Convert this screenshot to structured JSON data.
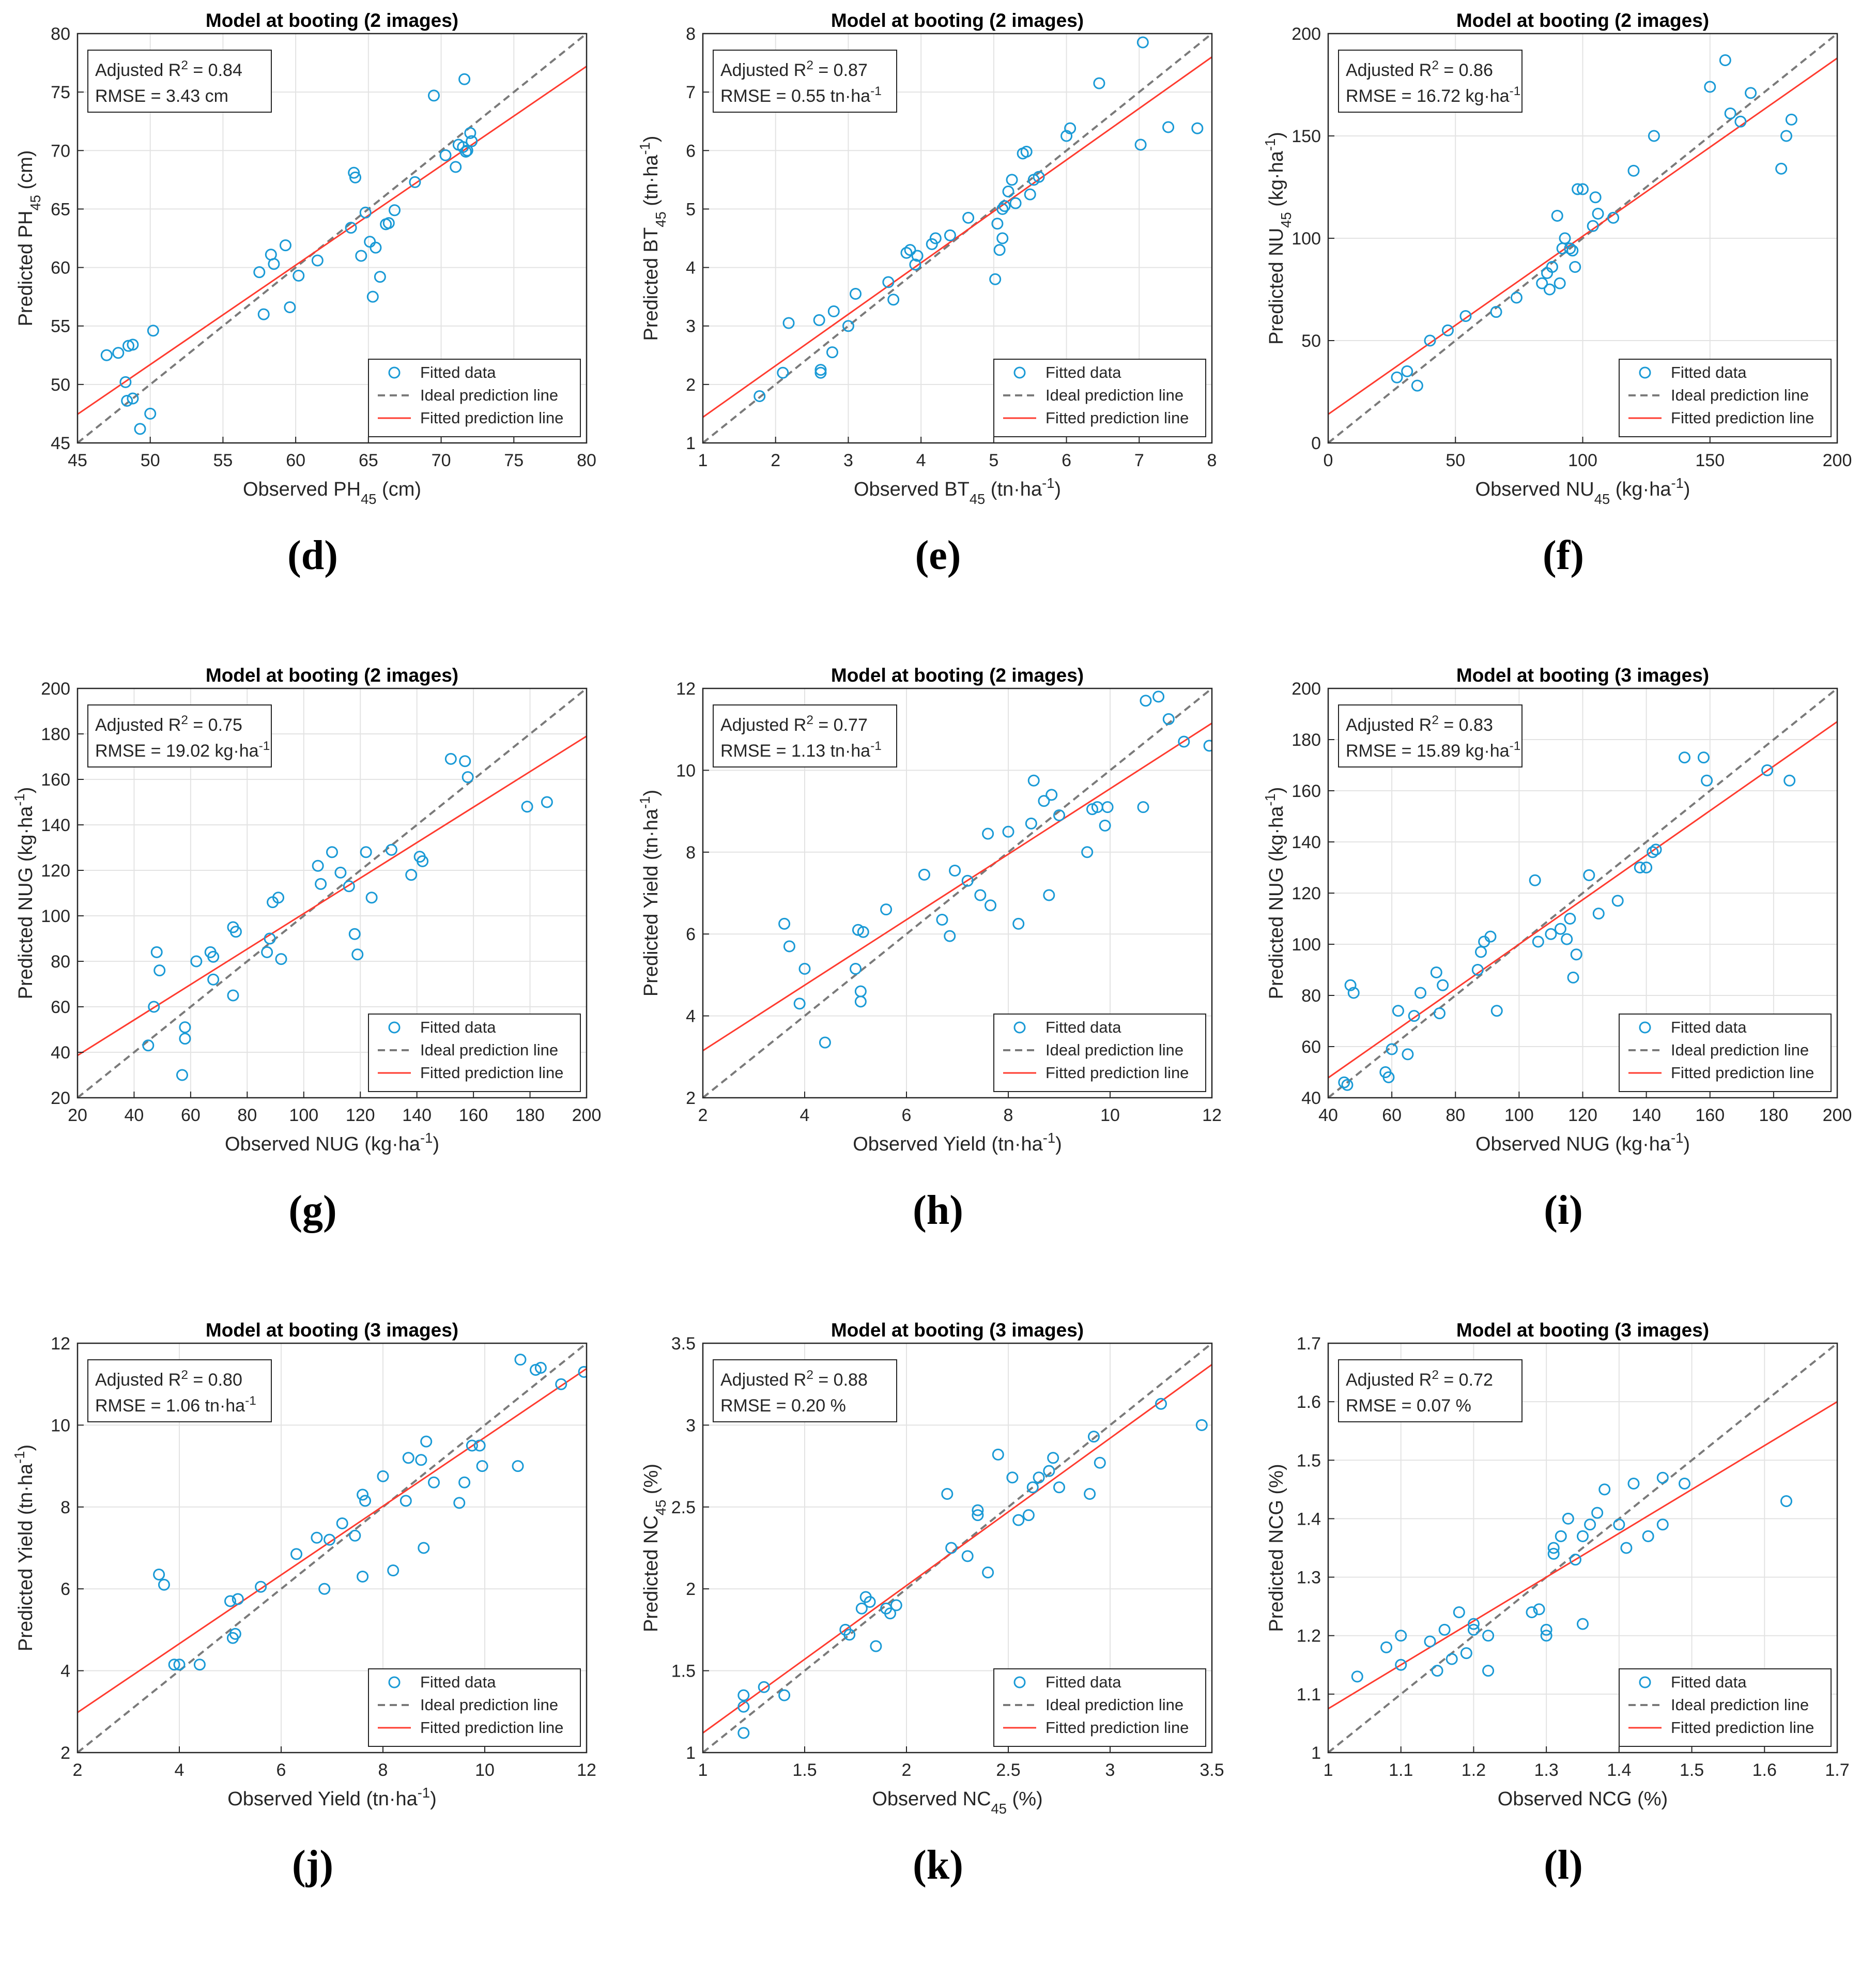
{
  "chart_data": [
    {
      "id": "d",
      "type": "scatter",
      "panel_label": "(d)",
      "title": "Model at booting (2 images)",
      "xlabel": "Observed PH",
      "xlabel_sub": "45",
      "xlabel_after": " (cm)",
      "ylabel": "Predicted PH",
      "ylabel_sub": "45",
      "ylabel_after": " (cm)",
      "xlim": [
        45,
        80
      ],
      "ylim": [
        45,
        80
      ],
      "xticks": [
        45,
        50,
        55,
        60,
        65,
        70,
        75,
        80
      ],
      "yticks": [
        45,
        50,
        55,
        60,
        65,
        70,
        75,
        80
      ],
      "stats": {
        "r2_label": "Adjusted R",
        "r2_sup": "2",
        "r2_value": " = 0.84",
        "rmse_label": "RMSE = 3.43 cm",
        "rmse_sup": "",
        "rmse_after": ""
      },
      "legend": [
        "Fitted data",
        "Ideal prediction line",
        "Fitted prediction line"
      ],
      "fit": [
        0.85,
        9.2
      ],
      "x": [
        47,
        47.8,
        48.5,
        48.8,
        48.3,
        48.4,
        48.8,
        49.3,
        50,
        50.2,
        57.5,
        57.8,
        58.3,
        58.5,
        59.3,
        59.6,
        60.2,
        61.5,
        63.8,
        64,
        64.1,
        64.5,
        64.8,
        65.1,
        65.3,
        65.5,
        65.8,
        66.2,
        66.4,
        66.8,
        68.2,
        69.5,
        70.3,
        71,
        71.2,
        71.5,
        71.7,
        71.8,
        72,
        72.1,
        71.6
      ],
      "y": [
        52.5,
        52.7,
        53.3,
        53.4,
        50.2,
        48.6,
        48.8,
        46.2,
        47.5,
        54.6,
        59.6,
        56,
        61.1,
        60.3,
        61.9,
        56.6,
        59.3,
        60.6,
        63.4,
        68.1,
        67.7,
        61,
        64.7,
        62.2,
        57.5,
        61.7,
        59.2,
        63.7,
        63.8,
        64.9,
        67.3,
        74.7,
        69.6,
        68.6,
        70.5,
        70.3,
        69.9,
        70,
        71.5,
        70.8,
        76.1
      ]
    },
    {
      "id": "e",
      "type": "scatter",
      "panel_label": "(e)",
      "title": "Model at booting (2 images)",
      "xlabel": "Observed BT",
      "xlabel_sub": "45",
      "xlabel_after": " (tn·ha",
      "xlabel_sup": "-1",
      "xlabel_end": ")",
      "ylabel": "Predicted BT",
      "ylabel_sub": "45",
      "ylabel_after": " (tn·ha",
      "ylabel_sup": "-1",
      "ylabel_end": ")",
      "xlim": [
        1,
        8
      ],
      "ylim": [
        1,
        8
      ],
      "xticks": [
        1,
        2,
        3,
        4,
        5,
        6,
        7,
        8
      ],
      "yticks": [
        1,
        2,
        3,
        4,
        5,
        6,
        7,
        8
      ],
      "stats": {
        "r2_label": "Adjusted R",
        "r2_sup": "2",
        "r2_value": " = 0.87",
        "rmse_label": "RMSE = 0.55 tn·ha",
        "rmse_sup": "-1",
        "rmse_after": ""
      },
      "legend": [
        "Fitted data",
        "Ideal prediction line",
        "Fitted prediction line"
      ],
      "fit": [
        0.88,
        0.56
      ],
      "x": [
        1.78,
        2.1,
        2.18,
        2.6,
        2.62,
        2.62,
        2.78,
        2.8,
        3,
        3.1,
        3.55,
        3.62,
        3.8,
        3.85,
        3.92,
        3.95,
        4.15,
        4.2,
        4.4,
        4.65,
        5.02,
        5.05,
        5.08,
        5.12,
        5.12,
        5.15,
        5.2,
        5.25,
        5.3,
        5.4,
        5.45,
        5.5,
        5.55,
        5.62,
        6,
        6.05,
        6.45,
        7.02,
        7.05,
        7.4,
        7.8
      ],
      "y": [
        1.8,
        2.2,
        3.05,
        3.1,
        2.25,
        2.2,
        2.55,
        3.25,
        3,
        3.55,
        3.75,
        3.45,
        4.25,
        4.3,
        4.05,
        4.2,
        4.4,
        4.5,
        4.55,
        4.85,
        3.8,
        4.75,
        4.3,
        5,
        4.5,
        5.05,
        5.3,
        5.5,
        5.1,
        5.95,
        5.98,
        5.25,
        5.5,
        5.55,
        6.25,
        6.38,
        7.15,
        6.1,
        7.85,
        6.4,
        6.38
      ]
    },
    {
      "id": "f",
      "type": "scatter",
      "panel_label": "(f)",
      "title": "Model at booting (2 images)",
      "xlabel": "Observed NU",
      "xlabel_sub": "45",
      "xlabel_after": " (kg·ha",
      "xlabel_sup": "-1",
      "xlabel_end": ")",
      "ylabel": "Predicted NU",
      "ylabel_sub": "45",
      "ylabel_after": " (kg·ha",
      "ylabel_sup": "-1",
      "ylabel_end": ")",
      "xlim": [
        0,
        200
      ],
      "ylim": [
        0,
        200
      ],
      "xticks": [
        0,
        50,
        100,
        150,
        200
      ],
      "yticks": [
        0,
        50,
        100,
        150,
        200
      ],
      "stats": {
        "r2_label": "Adjusted R",
        "r2_sup": "2",
        "r2_value": " = 0.86",
        "rmse_label": "RMSE = 16.72 kg·ha",
        "rmse_sup": "-1",
        "rmse_after": ""
      },
      "legend": [
        "Fitted data",
        "Ideal prediction line",
        "Fitted prediction line"
      ],
      "fit": [
        0.87,
        14
      ],
      "x": [
        27,
        31,
        35,
        40,
        47,
        54,
        66,
        74,
        84,
        86,
        87,
        88,
        90,
        91,
        92,
        93,
        95,
        96,
        97,
        98,
        100,
        104,
        105,
        106,
        112,
        120,
        128,
        150,
        156,
        158,
        162,
        166,
        178,
        180,
        182
      ],
      "y": [
        32,
        35,
        28,
        50,
        55,
        62,
        64,
        71,
        78,
        83,
        75,
        86,
        111,
        78,
        95,
        100,
        95,
        94,
        86,
        124,
        124,
        106,
        120,
        112,
        110,
        133,
        150,
        174,
        187,
        161,
        157,
        171,
        134,
        150,
        158
      ]
    },
    {
      "id": "g",
      "type": "scatter",
      "panel_label": "(g)",
      "title": "Model at booting (2 images)",
      "xlabel": "Observed NUG (kg·ha",
      "xlabel_sub": "",
      "xlabel_after": "",
      "xlabel_sup": "-1",
      "xlabel_end": ")",
      "ylabel": "Predicted NUG (kg·ha",
      "ylabel_sub": "",
      "ylabel_after": "",
      "ylabel_sup": "-1",
      "ylabel_end": ")",
      "xlim": [
        20,
        200
      ],
      "ylim": [
        20,
        200
      ],
      "xticks": [
        20,
        40,
        60,
        80,
        100,
        120,
        140,
        160,
        180,
        200
      ],
      "yticks": [
        20,
        40,
        60,
        80,
        100,
        120,
        140,
        160,
        180,
        200
      ],
      "stats": {
        "r2_label": "Adjusted R",
        "r2_sup": "2",
        "r2_value": " = 0.75",
        "rmse_label": "RMSE = 19.02 kg·ha",
        "rmse_sup": "-1",
        "rmse_after": ""
      },
      "legend": [
        "Fitted data",
        "Ideal prediction line",
        "Fitted prediction line"
      ],
      "fit": [
        0.78,
        23
      ],
      "x": [
        45,
        47,
        48,
        49,
        57,
        58,
        58,
        62,
        67,
        68,
        68,
        75,
        75,
        76,
        87,
        88,
        89,
        91,
        92,
        105,
        106,
        110,
        113,
        116,
        118,
        119,
        122,
        124,
        131,
        138,
        141,
        142,
        152,
        157,
        158,
        179,
        186
      ],
      "y": [
        43,
        60,
        84,
        76,
        30,
        46,
        51,
        80,
        84,
        82,
        72,
        65,
        95,
        93,
        84,
        90,
        106,
        108,
        81,
        122,
        114,
        128,
        119,
        113,
        92,
        83,
        128,
        108,
        129,
        118,
        126,
        124,
        169,
        168,
        161,
        148,
        150
      ]
    },
    {
      "id": "h",
      "type": "scatter",
      "panel_label": "(h)",
      "title": "Model at booting (2 images)",
      "xlabel": "Observed Yield (tn·ha",
      "xlabel_sub": "",
      "xlabel_after": "",
      "xlabel_sup": "-1",
      "xlabel_end": ")",
      "ylabel": "Predicted Yield (tn·ha",
      "ylabel_sub": "",
      "ylabel_after": "",
      "ylabel_sup": "-1",
      "ylabel_end": ")",
      "xlim": [
        2,
        12
      ],
      "ylim": [
        2,
        12
      ],
      "xticks": [
        2,
        4,
        6,
        8,
        10,
        12
      ],
      "yticks": [
        2,
        4,
        6,
        8,
        10,
        12
      ],
      "stats": {
        "r2_label": "Adjusted R",
        "r2_sup": "2",
        "r2_value": " = 0.77",
        "rmse_label": "RMSE = 1.13 tn·ha",
        "rmse_sup": "-1",
        "rmse_after": ""
      },
      "legend": [
        "Fitted data",
        "Ideal prediction line",
        "Fitted prediction line"
      ],
      "fit": [
        0.8,
        1.55
      ],
      "x": [
        3.6,
        3.7,
        3.9,
        4,
        4.4,
        5,
        5.05,
        5.1,
        5.1,
        5.15,
        5.6,
        6.35,
        6.7,
        6.85,
        6.95,
        7.2,
        7.45,
        7.6,
        7.65,
        8,
        8.2,
        8.45,
        8.5,
        8.7,
        8.8,
        8.85,
        9,
        9.55,
        9.65,
        9.75,
        9.9,
        9.95,
        10.65,
        10.7,
        10.95,
        11.15,
        11.45,
        11.95
      ],
      "y": [
        6.25,
        5.7,
        4.3,
        5.15,
        3.35,
        5.15,
        6.1,
        4.6,
        4.35,
        6.05,
        6.6,
        7.45,
        6.35,
        5.95,
        7.55,
        7.3,
        6.95,
        8.45,
        6.7,
        8.5,
        6.25,
        8.7,
        9.75,
        9.25,
        6.95,
        9.4,
        8.9,
        8,
        9.05,
        9.1,
        8.65,
        9.1,
        9.1,
        11.7,
        11.8,
        11.25,
        10.7,
        10.6
      ]
    },
    {
      "id": "i",
      "type": "scatter",
      "panel_label": "(i)",
      "title": "Model at booting (3 images)",
      "xlabel": "Observed NUG (kg·ha",
      "xlabel_sub": "",
      "xlabel_after": "",
      "xlabel_sup": "-1",
      "xlabel_end": ")",
      "ylabel": "Predicted NUG (kg·ha",
      "ylabel_sub": "",
      "ylabel_after": "",
      "ylabel_sup": "-1",
      "ylabel_end": ")",
      "xlim": [
        40,
        200
      ],
      "ylim": [
        40,
        200
      ],
      "xticks": [
        40,
        60,
        80,
        100,
        120,
        140,
        160,
        180,
        200
      ],
      "yticks": [
        40,
        60,
        80,
        100,
        120,
        140,
        160,
        180,
        200
      ],
      "stats": {
        "r2_label": "Adjusted R",
        "r2_sup": "2",
        "r2_value": " = 0.83",
        "rmse_label": "RMSE = 15.89 kg·ha",
        "rmse_sup": "-1",
        "rmse_after": ""
      },
      "legend": [
        "Fitted data",
        "Ideal prediction line",
        "Fitted prediction line"
      ],
      "fit": [
        0.87,
        13
      ],
      "x": [
        45,
        46,
        47,
        48,
        58,
        59,
        60,
        62,
        65,
        67,
        69,
        74,
        75,
        76,
        87,
        88,
        89,
        91,
        93,
        105,
        106,
        110,
        113,
        115,
        116,
        117,
        118,
        122,
        125,
        131,
        138,
        140,
        142,
        143,
        152,
        158,
        159,
        178,
        185
      ],
      "y": [
        46,
        45,
        84,
        81,
        50,
        48,
        59,
        74,
        57,
        72,
        81,
        89,
        73,
        84,
        90,
        97,
        101,
        103,
        74,
        125,
        101,
        104,
        106,
        102,
        110,
        87,
        96,
        127,
        112,
        117,
        130,
        130,
        136,
        137,
        173,
        173,
        164,
        168,
        164
      ]
    },
    {
      "id": "j",
      "type": "scatter",
      "panel_label": "(j)",
      "title": "Model at booting (3 images)",
      "xlabel": "Observed Yield (tn·ha",
      "xlabel_sub": "",
      "xlabel_after": "",
      "xlabel_sup": "-1",
      "xlabel_end": ")",
      "ylabel": "Predicted Yield (tn·ha",
      "ylabel_sub": "",
      "ylabel_after": "",
      "ylabel_sup": "-1",
      "ylabel_end": ")",
      "xlim": [
        2,
        12
      ],
      "ylim": [
        2,
        12
      ],
      "xticks": [
        2,
        4,
        6,
        8,
        10,
        12
      ],
      "yticks": [
        2,
        4,
        6,
        8,
        10,
        12
      ],
      "stats": {
        "r2_label": "Adjusted R",
        "r2_sup": "2",
        "r2_value": " = 0.80",
        "rmse_label": "RMSE = 1.06 tn·ha",
        "rmse_sup": "-1",
        "rmse_after": ""
      },
      "legend": [
        "Fitted data",
        "Ideal prediction line",
        "Fitted prediction line"
      ],
      "fit": [
        0.84,
        1.3
      ],
      "x": [
        3.6,
        3.7,
        3.9,
        4,
        4.4,
        5,
        5.05,
        5.1,
        5.15,
        5.6,
        6.3,
        6.7,
        6.85,
        6.95,
        7.2,
        7.45,
        7.6,
        7.6,
        7.65,
        8,
        8.2,
        8.45,
        8.5,
        8.75,
        8.8,
        8.85,
        9,
        9.5,
        9.6,
        9.75,
        9.9,
        9.95,
        10.65,
        10.7,
        11.0,
        11.1,
        11.5,
        11.95
      ],
      "y": [
        6.35,
        6.1,
        4.15,
        4.15,
        4.15,
        5.7,
        4.8,
        4.9,
        5.75,
        6.05,
        6.85,
        7.25,
        6.0,
        7.2,
        7.6,
        7.3,
        8.3,
        6.3,
        8.15,
        8.75,
        6.45,
        8.15,
        9.2,
        9.15,
        7.0,
        9.6,
        8.6,
        8.1,
        8.6,
        9.5,
        9.5,
        9.0,
        9.0,
        11.6,
        11.35,
        11.4,
        11.0,
        11.3
      ]
    },
    {
      "id": "k",
      "type": "scatter",
      "panel_label": "(k)",
      "title": "Model at booting (3 images)",
      "xlabel": "Observed NC",
      "xlabel_sub": "45",
      "xlabel_after": " (%)",
      "ylabel": "Predicted NC",
      "ylabel_sub": "45",
      "ylabel_after": " (%)",
      "xlim": [
        1,
        3.5
      ],
      "ylim": [
        1,
        3.5
      ],
      "xticks": [
        1,
        1.5,
        2,
        2.5,
        3,
        3.5
      ],
      "yticks": [
        1,
        1.5,
        2,
        2.5,
        3,
        3.5
      ],
      "stats": {
        "r2_label": "Adjusted R",
        "r2_sup": "2",
        "r2_value": " = 0.88",
        "rmse_label": "RMSE = 0.20 %",
        "rmse_sup": "",
        "rmse_after": ""
      },
      "legend": [
        "Fitted data",
        "Ideal prediction line",
        "Fitted prediction line"
      ],
      "fit": [
        0.9,
        0.22
      ],
      "x": [
        1.2,
        1.2,
        1.2,
        1.3,
        1.4,
        1.7,
        1.72,
        1.78,
        1.8,
        1.82,
        1.85,
        1.9,
        1.92,
        1.95,
        2.2,
        2.22,
        2.3,
        2.35,
        2.35,
        2.4,
        2.45,
        2.52,
        2.55,
        2.6,
        2.62,
        2.65,
        2.7,
        2.72,
        2.75,
        2.9,
        2.92,
        2.95,
        3.25,
        3.45
      ],
      "y": [
        1.35,
        1.28,
        1.12,
        1.4,
        1.35,
        1.75,
        1.72,
        1.88,
        1.95,
        1.92,
        1.65,
        1.88,
        1.85,
        1.9,
        2.58,
        2.25,
        2.2,
        2.45,
        2.48,
        2.1,
        2.82,
        2.68,
        2.42,
        2.45,
        2.62,
        2.68,
        2.72,
        2.8,
        2.62,
        2.58,
        2.93,
        2.77,
        3.13,
        3.0
      ]
    },
    {
      "id": "l",
      "type": "scatter",
      "panel_label": "(l)",
      "title": "Model at booting (3 images)",
      "xlabel": "Observed NCG (%)",
      "xlabel_sub": "",
      "xlabel_after": "",
      "ylabel": "Predicted NCG (%)",
      "ylabel_sub": "",
      "ylabel_after": "",
      "xlim": [
        1,
        1.7
      ],
      "ylim": [
        1,
        1.7
      ],
      "xticks": [
        1,
        1.1,
        1.2,
        1.3,
        1.4,
        1.5,
        1.6,
        1.7
      ],
      "yticks": [
        1,
        1.1,
        1.2,
        1.3,
        1.4,
        1.5,
        1.6,
        1.7
      ],
      "stats": {
        "r2_label": "Adjusted R",
        "r2_sup": "2",
        "r2_value": " = 0.72",
        "rmse_label": "RMSE = 0.07 %",
        "rmse_sup": "",
        "rmse_after": ""
      },
      "legend": [
        "Fitted data",
        "Ideal prediction line",
        "Fitted prediction line"
      ],
      "fit": [
        0.75,
        0.325
      ],
      "x": [
        1.04,
        1.08,
        1.1,
        1.1,
        1.14,
        1.15,
        1.16,
        1.17,
        1.18,
        1.19,
        1.2,
        1.2,
        1.22,
        1.22,
        1.28,
        1.29,
        1.3,
        1.3,
        1.31,
        1.31,
        1.32,
        1.33,
        1.34,
        1.35,
        1.35,
        1.36,
        1.37,
        1.38,
        1.4,
        1.41,
        1.42,
        1.44,
        1.46,
        1.46,
        1.49,
        1.63
      ],
      "y": [
        1.13,
        1.18,
        1.15,
        1.2,
        1.19,
        1.14,
        1.21,
        1.16,
        1.24,
        1.17,
        1.22,
        1.21,
        1.2,
        1.14,
        1.24,
        1.245,
        1.21,
        1.2,
        1.34,
        1.35,
        1.37,
        1.4,
        1.33,
        1.37,
        1.22,
        1.39,
        1.41,
        1.45,
        1.39,
        1.35,
        1.46,
        1.37,
        1.47,
        1.39,
        1.46,
        1.43
      ]
    }
  ]
}
